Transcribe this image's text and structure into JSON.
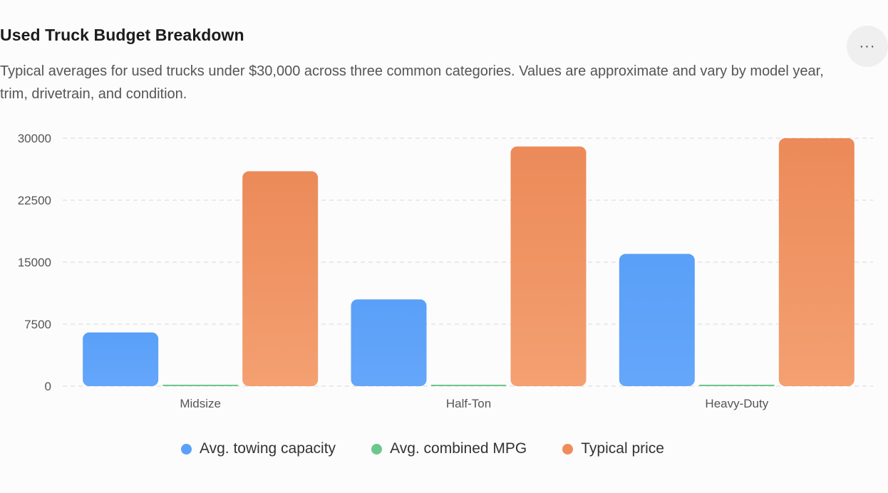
{
  "header": {
    "title": "Used Truck Budget Breakdown",
    "subtitle": "Typical averages for used trucks under $30,000 across three common categories. Values are approximate and vary by model year, trim, drivetrain, and condition.",
    "menu_icon": "ellipsis-icon",
    "menu_label": "···"
  },
  "chart_data": {
    "type": "bar",
    "categories": [
      "Midsize",
      "Half-Ton",
      "Heavy-Duty"
    ],
    "series": [
      {
        "name": "Avg. towing capacity",
        "values": [
          6500,
          10500,
          16000
        ],
        "color": "#5aa0f8"
      },
      {
        "name": "Avg. combined MPG",
        "values": [
          21,
          19,
          15
        ],
        "color": "#6cc78c"
      },
      {
        "name": "Typical price",
        "values": [
          26000,
          29000,
          30000
        ],
        "color": "#ef8c5c"
      }
    ],
    "yticks": [
      0,
      7500,
      15000,
      22500,
      30000
    ],
    "ylim": [
      0,
      30000
    ],
    "grid": true,
    "legend_position": "bottom"
  }
}
